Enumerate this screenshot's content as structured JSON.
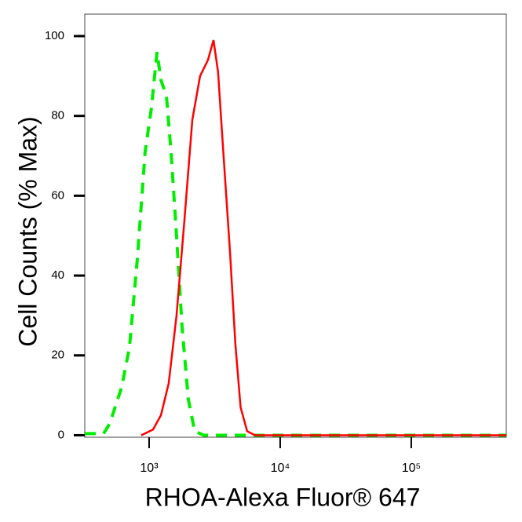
{
  "chart_data": {
    "type": "line",
    "xlabel": "RHOA-Alexa Fluor® 647",
    "ylabel": "Cell Counts (% Max)",
    "xscale": "log",
    "xlim": [
      323,
      531000
    ],
    "ylim": [
      -0.5,
      105.5
    ],
    "xticks": [
      {
        "value": 1000,
        "label": "10³"
      },
      {
        "value": 10000,
        "label": "10⁴"
      },
      {
        "value": 100000,
        "label": "10⁵"
      }
    ],
    "yticks": [
      0,
      20,
      40,
      60,
      80,
      100
    ],
    "series": [
      {
        "color": "#00ee00",
        "dashed": true,
        "x": [
          323,
          450,
          502,
          617,
          708,
          813,
          933,
          1042,
          1148,
          1230,
          1355,
          1470,
          1620,
          1785,
          1990,
          2225,
          2625,
          5000,
          531000
        ],
        "values": [
          0.4,
          0.4,
          3,
          12,
          22,
          44,
          71,
          82,
          96,
          89,
          85,
          71,
          50,
          27,
          9,
          1,
          0,
          0,
          0
        ]
      },
      {
        "color": "#ff0000",
        "dashed": false,
        "x": [
          871,
          1071,
          1230,
          1410,
          1620,
          1860,
          2135,
          2450,
          2810,
          3100,
          3360,
          3700,
          4140,
          4550,
          4990,
          5600,
          6440,
          531000
        ],
        "values": [
          0,
          1.4,
          5,
          13,
          30,
          54,
          79,
          90,
          94,
          99,
          91,
          70,
          46,
          23,
          7,
          1,
          0,
          0
        ]
      }
    ]
  }
}
